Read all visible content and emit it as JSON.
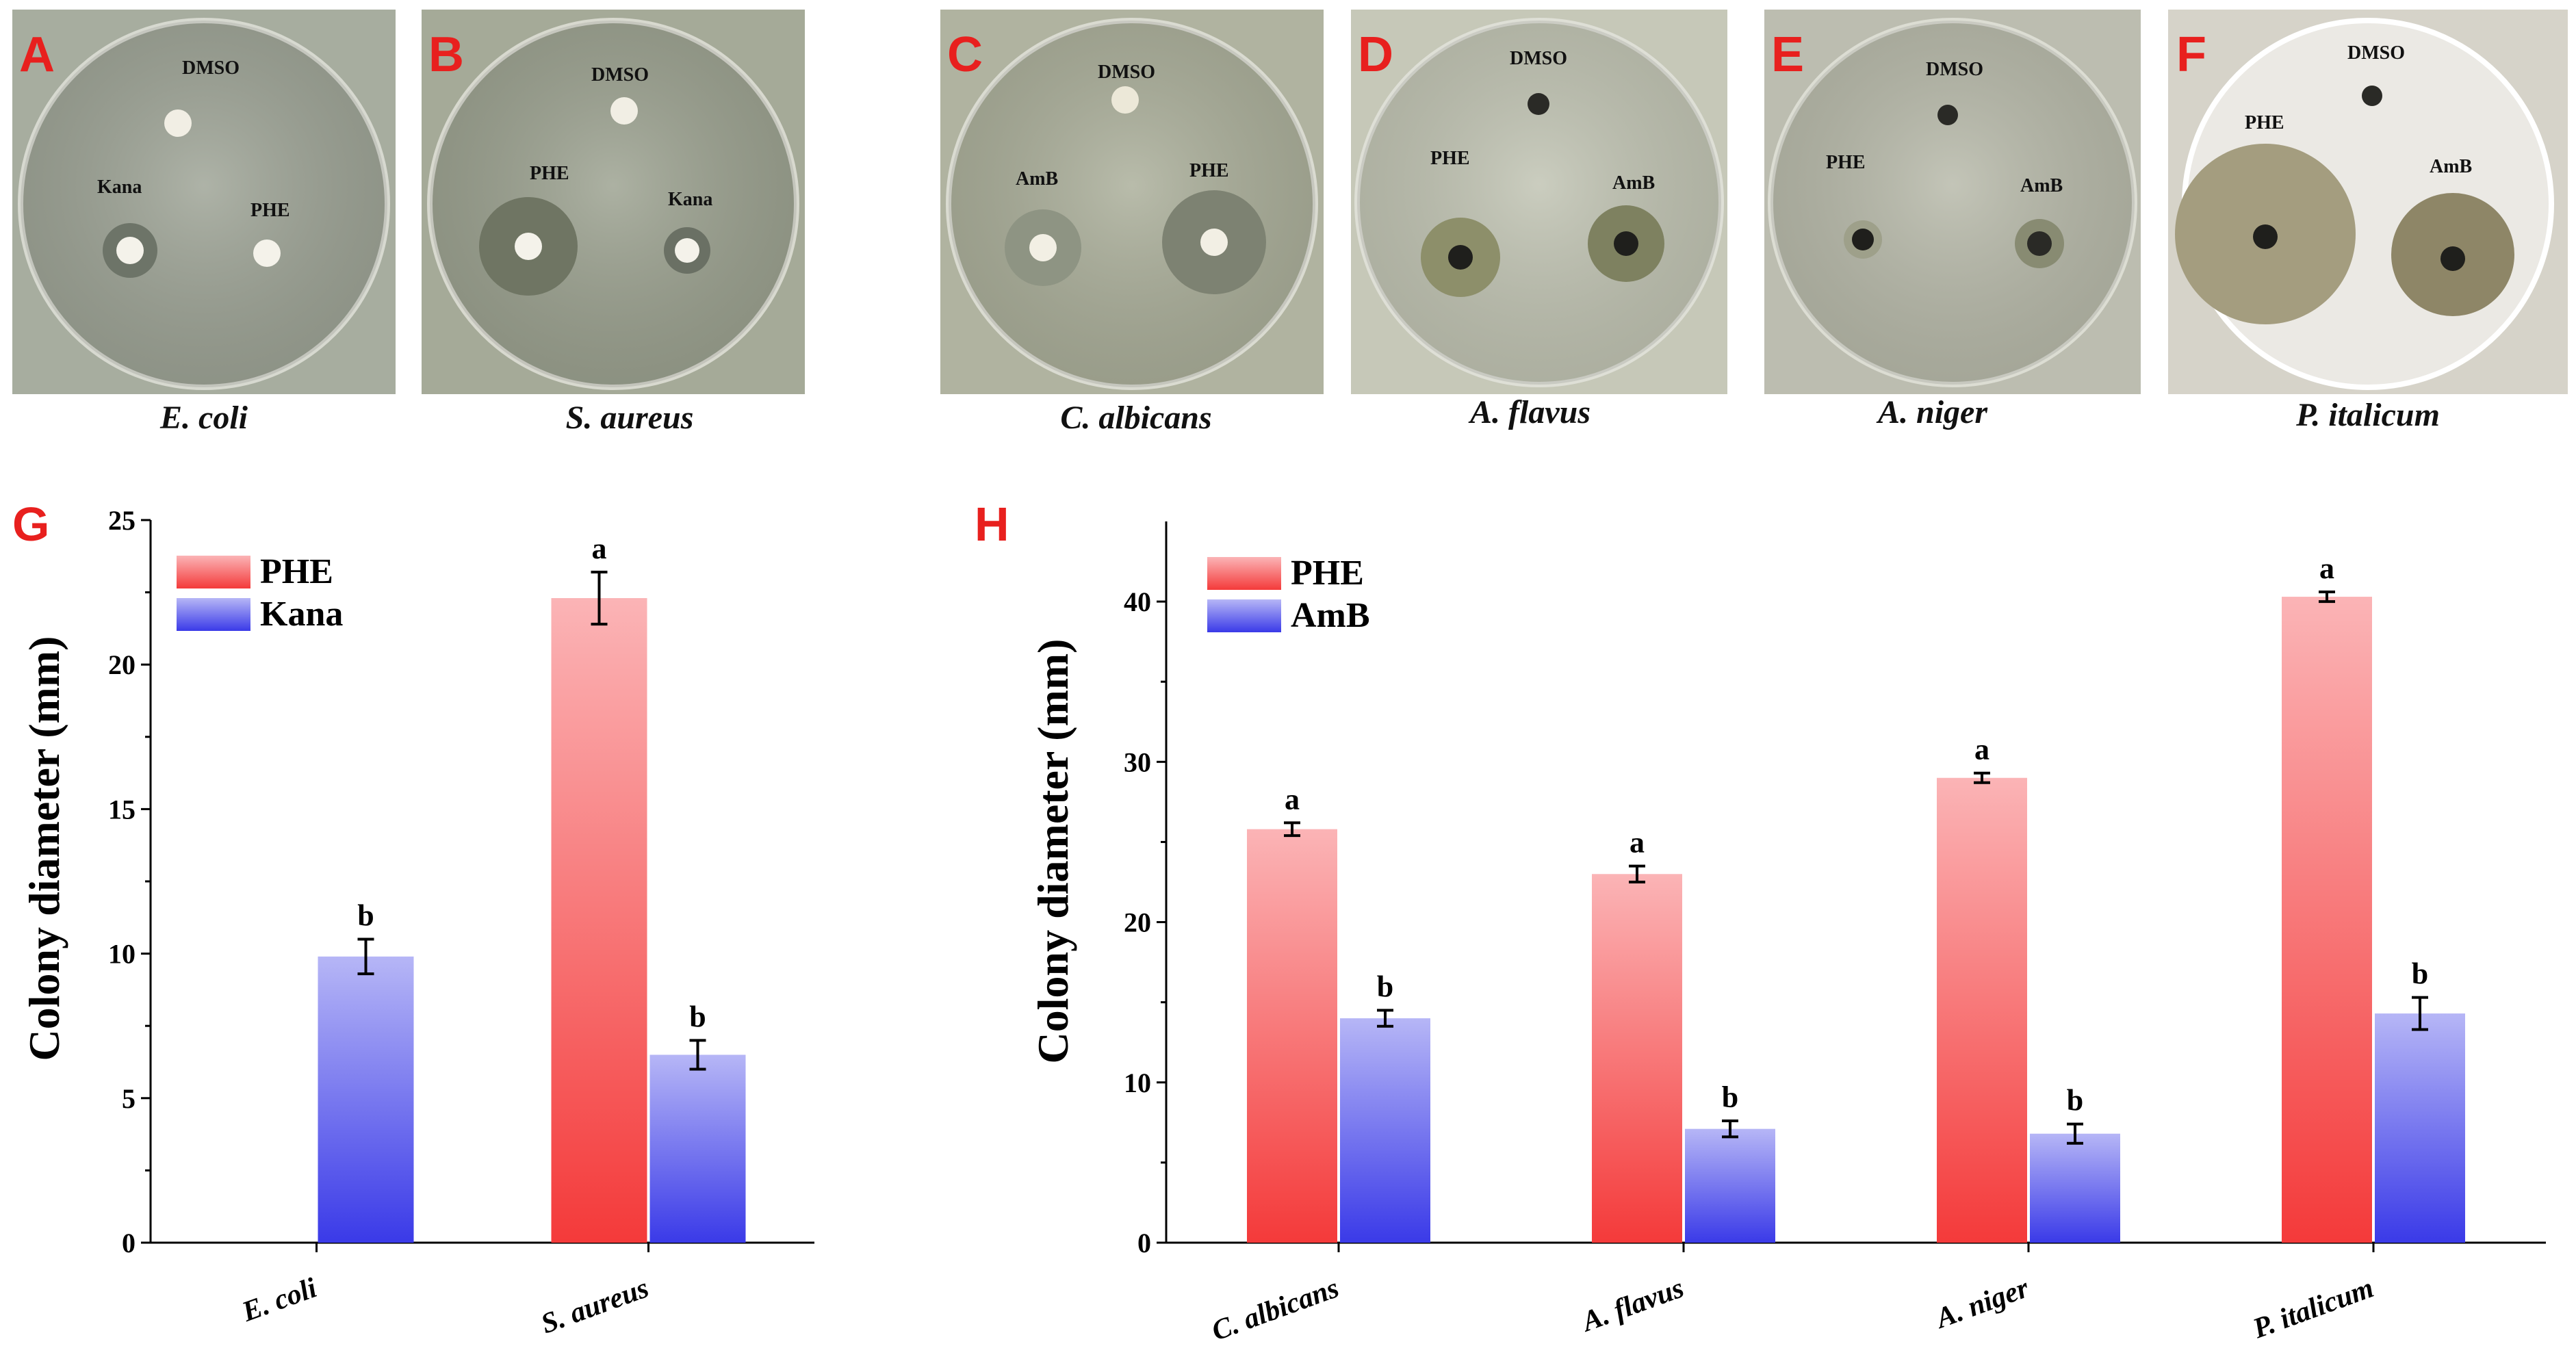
{
  "plates": [
    {
      "letter": "A",
      "species": "E. coli",
      "labels": [
        "DMSO",
        "Kana",
        "PHE"
      ],
      "bg": "#a7ad9f"
    },
    {
      "letter": "B",
      "species": "S. aureus",
      "labels": [
        "DMSO",
        "PHE",
        "Kana"
      ],
      "bg": "#a5aa98"
    },
    {
      "letter": "C",
      "species": "C. albicans",
      "labels": [
        "DMSO",
        "AmB",
        "PHE"
      ],
      "bg": "#b0b3a0"
    },
    {
      "letter": "D",
      "species": "A. flavus",
      "labels": [
        "DMSO",
        "PHE",
        "AmB"
      ],
      "bg": "#c6c8b8"
    },
    {
      "letter": "E",
      "species": "A. niger",
      "labels": [
        "DMSO",
        "PHE",
        "AmB"
      ],
      "bg": "#bcbdb0"
    },
    {
      "letter": "F",
      "species": "P. italicum",
      "labels": [
        "DMSO",
        "PHE",
        "AmB"
      ],
      "bg": "#d6d3c9"
    }
  ],
  "colors": {
    "phe_top": "#fbb4b6",
    "phe_bottom": "#f43a3a",
    "ref_top": "#b6b6f6",
    "ref_bottom": "#3a3ae8",
    "panel_letter": "#e8201e"
  },
  "chart_data": [
    {
      "panel": "G",
      "type": "bar",
      "categories": [
        "E. coli",
        "S. aureus"
      ],
      "ylabel": "Colony diameter (mm)",
      "ylim": [
        0,
        25
      ],
      "yticks": [
        0,
        5,
        10,
        15,
        20,
        25
      ],
      "legend_position": "top-left",
      "series": [
        {
          "name": "PHE",
          "values": [
            null,
            22.3
          ],
          "errors": [
            null,
            0.9
          ],
          "letters": [
            "",
            "a"
          ]
        },
        {
          "name": "Kana",
          "values": [
            9.9,
            6.5
          ],
          "errors": [
            0.6,
            0.5
          ],
          "letters": [
            "b",
            "b"
          ]
        }
      ]
    },
    {
      "panel": "H",
      "type": "bar",
      "categories": [
        "C. albicans",
        "A. flavus",
        "A. niger",
        "P. italicum"
      ],
      "ylabel": "Colony diameter (mm)",
      "ylim": [
        0,
        45
      ],
      "yticks": [
        0,
        10,
        20,
        30,
        40
      ],
      "legend_position": "top-left",
      "series": [
        {
          "name": "PHE",
          "values": [
            25.8,
            23.0,
            29.0,
            40.3
          ],
          "errors": [
            0.4,
            0.5,
            0.3,
            0.3
          ],
          "letters": [
            "a",
            "a",
            "a",
            "a"
          ]
        },
        {
          "name": "AmB",
          "values": [
            14.0,
            7.1,
            6.8,
            14.3
          ],
          "errors": [
            0.5,
            0.5,
            0.6,
            1.0
          ],
          "letters": [
            "b",
            "b",
            "b",
            "b"
          ]
        }
      ]
    }
  ]
}
